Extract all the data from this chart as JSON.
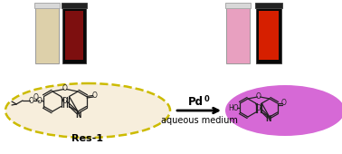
{
  "background_color": "#ffffff",
  "arrow_text_line1": "Pd",
  "arrow_text_line2": "aqueous medium",
  "res1_label": "Res-1",
  "left_cuv1_fill": "#ddd0aa",
  "left_cuv2_fill": "#0a0505",
  "left_cuv2_glow": "#8b1010",
  "right_cuv1_fill": "#e8a0c0",
  "right_cuv2_fill": "#0a0505",
  "right_cuv2_glow": "#ee2200",
  "dashed_ellipse_color": "#ccbb00",
  "dashed_ellipse_fill": "#f7eedc",
  "right_ellipse_color": "#bb44bb",
  "right_ellipse_fill": "#cc44cc",
  "struct_color": "#222222",
  "fig_width": 3.78,
  "fig_height": 1.7,
  "dpi": 100
}
